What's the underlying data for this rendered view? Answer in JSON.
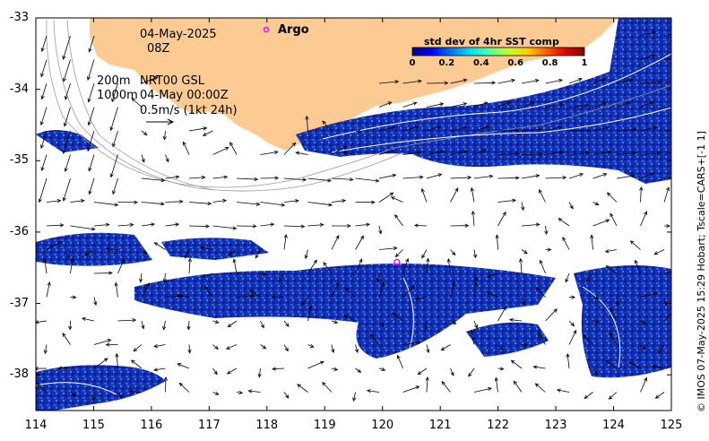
{
  "map": {
    "date": "04-May-2025",
    "time": "08Z",
    "argo_label": "Argo",
    "contour_label_200": "200m",
    "contour_label_1000": "1000m",
    "product": "NRT00 GSL",
    "product_time": "04-May 00:00Z",
    "scale_label": "0.5m/s (1kt 24h)",
    "credit": "© IMOS 07-May-2025 15:29 Hobart; Tscale=CARS+[-1 1]",
    "extent": {
      "lon_min": 114,
      "lon_max": 125,
      "lat_min": -38.5,
      "lat_max": -33
    },
    "argo_float": {
      "lon": 120.25,
      "lat": -36.42
    }
  },
  "axes": {
    "x_ticks": [
      "114",
      "115",
      "116",
      "117",
      "118",
      "119",
      "120",
      "121",
      "122",
      "123",
      "124",
      "125"
    ],
    "y_ticks": [
      "-33",
      "-34",
      "-35",
      "-36",
      "-37",
      "-38"
    ]
  },
  "colorbar": {
    "title": "std dev of 4hr SST comp",
    "ticks": [
      "0",
      "0.2",
      "0.4",
      "0.6",
      "0.8",
      "1"
    ],
    "colors": [
      "#00008f",
      "#0000ff",
      "#0070ff",
      "#00dfff",
      "#50ff9f",
      "#c0ff30",
      "#ffd000",
      "#ff6000",
      "#e00000",
      "#800000"
    ]
  },
  "colors": {
    "land": "#fccb94",
    "sst_dark": "#0a1a9c",
    "sst_mid": "#1438c8",
    "sst_light": "#2f6ee0"
  }
}
